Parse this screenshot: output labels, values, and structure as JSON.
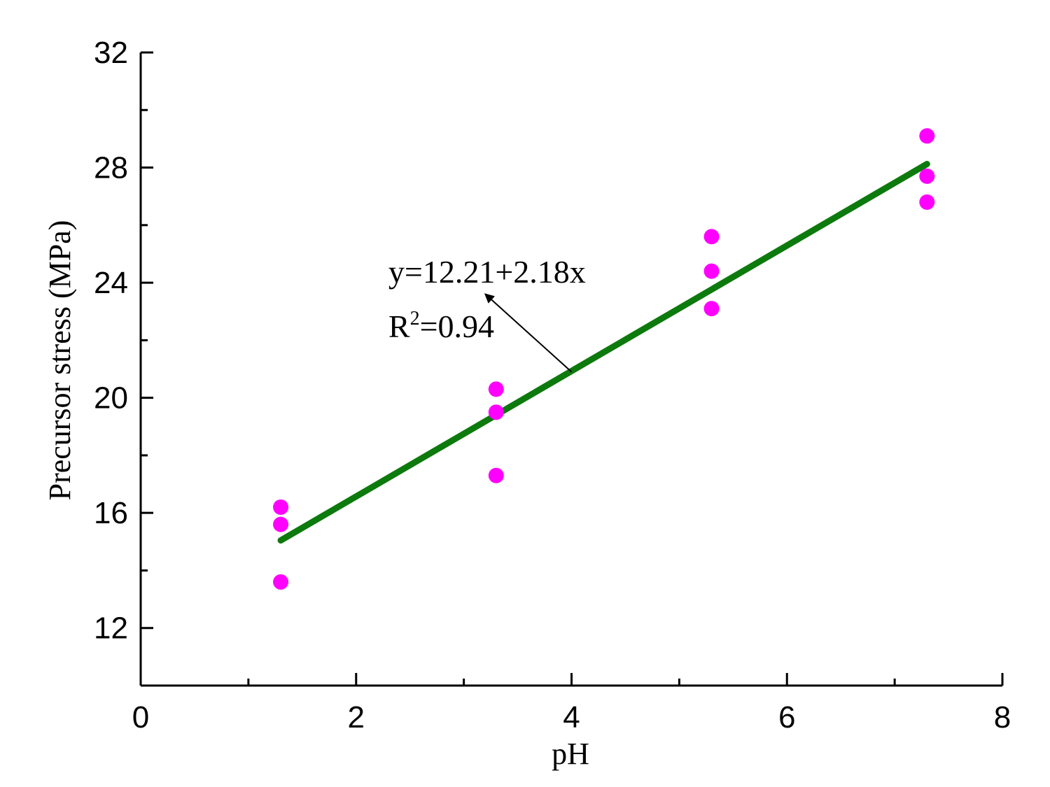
{
  "chart_data": {
    "type": "scatter",
    "xlabel": "pH",
    "ylabel": "Precursor stress (MPa)",
    "xlim": [
      0,
      8
    ],
    "ylim": [
      10,
      32
    ],
    "x_major_ticks": [
      0,
      2,
      4,
      6,
      8
    ],
    "x_minor_ticks": [
      1,
      3,
      5,
      7
    ],
    "y_major_ticks": [
      12,
      16,
      20,
      24,
      28,
      32
    ],
    "y_minor_ticks": [
      14,
      18,
      22,
      26,
      30
    ],
    "grid": false,
    "series": [
      {
        "type": "scatter",
        "color": "#ff00ff",
        "points": [
          {
            "x": 1.3,
            "y": 16.2
          },
          {
            "x": 1.3,
            "y": 15.6
          },
          {
            "x": 1.3,
            "y": 13.6
          },
          {
            "x": 3.3,
            "y": 20.3
          },
          {
            "x": 3.3,
            "y": 19.5
          },
          {
            "x": 3.3,
            "y": 17.3
          },
          {
            "x": 5.3,
            "y": 25.6
          },
          {
            "x": 5.3,
            "y": 24.4
          },
          {
            "x": 5.3,
            "y": 23.1
          },
          {
            "x": 7.3,
            "y": 29.1
          },
          {
            "x": 7.3,
            "y": 27.7
          },
          {
            "x": 7.3,
            "y": 26.8
          }
        ]
      },
      {
        "type": "line",
        "color": "#0d7a0d",
        "intercept": 12.21,
        "slope": 2.18,
        "x_range": [
          1.3,
          7.3
        ]
      }
    ],
    "annotation": {
      "equation_text": "y=12.21+2.18x",
      "r2_prefix": "R",
      "r2_sup": "2",
      "r2_suffix": "=0.94",
      "anchor": {
        "x": 4.0,
        "y": 20.9
      },
      "arrow_tip": {
        "x": 3.2,
        "y": 23.6
      },
      "label_at": {
        "x": 2.3,
        "y": 24.0
      }
    }
  }
}
